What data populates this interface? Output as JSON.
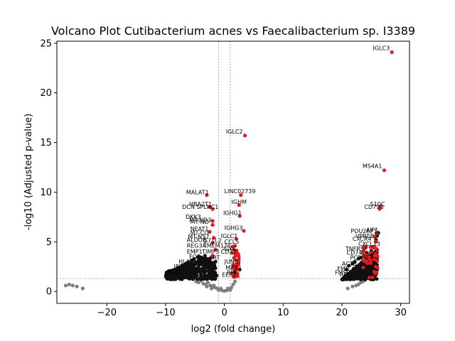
{
  "chart_data": {
    "type": "scatter",
    "title": "Volcano Plot Cutibacterium acnes vs Faecalibacterium sp. I3389",
    "xlabel": "log2 (fold change)",
    "ylabel": "-log10 (Adjusted p-value)",
    "xlim": [
      -28.5,
      31.5
    ],
    "ylim": [
      -1.2,
      25.2
    ],
    "x_ticks": [
      -20,
      -10,
      0,
      10,
      20,
      30
    ],
    "x_tick_labels": [
      "−20",
      "−10",
      "0",
      "10",
      "20",
      "30"
    ],
    "y_ticks": [
      0,
      5,
      10,
      15,
      20,
      25
    ],
    "y_tick_labels": [
      "0",
      "5",
      "10",
      "15",
      "20",
      "25"
    ],
    "thresholds": {
      "log2fc": [
        -1,
        1
      ],
      "neg_log10_padj": 1.3
    },
    "colors": {
      "significant": "#e8191c",
      "not_significant": "#808080",
      "threshold_line": "#808080"
    },
    "grid": false,
    "series": [
      {
        "group": "not_significant",
        "points": [
          [
            -27,
            0.6
          ],
          [
            -26.4,
            0.7
          ],
          [
            -25.8,
            0.6
          ],
          [
            -25.1,
            0.5
          ],
          [
            -24.1,
            0.3
          ],
          [
            -4.8,
            1.0
          ],
          [
            -4.4,
            0.9
          ],
          [
            -4.0,
            1.1
          ],
          [
            -3.6,
            0.8
          ],
          [
            -3.2,
            0.7
          ],
          [
            -2.8,
            0.9
          ],
          [
            -2.4,
            0.6
          ],
          [
            -2.0,
            0.5
          ],
          [
            -1.6,
            0.4
          ],
          [
            -1.2,
            0.3
          ],
          [
            -0.8,
            0.2
          ],
          [
            -0.4,
            0.1
          ],
          [
            0.0,
            0.05
          ],
          [
            0.4,
            0.1
          ],
          [
            0.8,
            0.2
          ],
          [
            1.2,
            0.4
          ],
          [
            1.5,
            0.7
          ],
          [
            1.8,
            1.0
          ],
          [
            -0.6,
            0.3
          ],
          [
            0.6,
            0.3
          ],
          [
            -3.0,
            0.5
          ],
          [
            -1.0,
            0.15
          ],
          [
            1.0,
            0.15
          ],
          [
            -2.2,
            0.3
          ],
          [
            -1.8,
            0.6
          ],
          [
            21.0,
            0.3
          ],
          [
            21.8,
            0.5
          ],
          [
            22.4,
            0.6
          ],
          [
            22.8,
            0.7
          ],
          [
            23.2,
            0.9
          ],
          [
            23.5,
            1.0
          ],
          [
            23.8,
            1.1
          ]
        ]
      },
      {
        "group": "significant_cluster",
        "points": [
          [
            -9.5,
            1.5
          ],
          [
            -9.0,
            1.6
          ],
          [
            -8.5,
            1.7
          ],
          [
            -8.0,
            1.6
          ],
          [
            -7.5,
            1.8
          ],
          [
            -7.0,
            2.0
          ],
          [
            -6.5,
            2.2
          ],
          [
            -6.0,
            2.4
          ],
          [
            -5.5,
            2.5
          ],
          [
            -5.0,
            2.7
          ],
          [
            -4.5,
            2.8
          ],
          [
            -4.0,
            3.0
          ],
          [
            -3.5,
            2.9
          ],
          [
            -3.0,
            3.1
          ],
          [
            -2.5,
            3.3
          ],
          [
            -2.0,
            3.5
          ],
          [
            -1.5,
            3.0
          ],
          [
            -6.8,
            1.5
          ],
          [
            -5.8,
            1.9
          ],
          [
            -4.8,
            2.1
          ],
          [
            -3.8,
            2.3
          ],
          [
            -2.8,
            2.4
          ],
          [
            -1.8,
            2.6
          ],
          [
            -7.8,
            2.4
          ],
          [
            -6.3,
            2.9
          ],
          [
            -5.3,
            3.2
          ],
          [
            -4.3,
            3.5
          ],
          [
            -3.3,
            3.6
          ],
          [
            -2.3,
            1.8
          ],
          [
            -1.3,
            1.6
          ],
          [
            1.5,
            1.6
          ],
          [
            1.8,
            2.0
          ],
          [
            2.0,
            2.4
          ],
          [
            2.2,
            1.8
          ],
          [
            2.4,
            2.8
          ],
          [
            1.6,
            2.6
          ],
          [
            2.6,
            2.2
          ],
          [
            20.5,
            1.5
          ],
          [
            21.0,
            1.8
          ],
          [
            21.5,
            2.0
          ],
          [
            22.0,
            2.3
          ],
          [
            22.5,
            2.5
          ],
          [
            23.0,
            2.7
          ],
          [
            23.5,
            3.0
          ],
          [
            24.0,
            3.3
          ],
          [
            24.5,
            3.6
          ],
          [
            21.2,
            2.6
          ],
          [
            22.2,
            3.0
          ],
          [
            23.2,
            3.4
          ],
          [
            24.2,
            3.9
          ],
          [
            25.0,
            4.1
          ],
          [
            20.8,
            2.2
          ],
          [
            21.8,
            2.8
          ],
          [
            22.8,
            3.3
          ],
          [
            23.8,
            3.6
          ],
          [
            24.8,
            3.0
          ],
          [
            25.3,
            4.5
          ],
          [
            25.8,
            5.2
          ],
          [
            26.0,
            5.6
          ],
          [
            26.2,
            5.9
          ],
          [
            24.6,
            2.2
          ],
          [
            25.6,
            2.6
          ]
        ]
      },
      {
        "group": "significant_labeled",
        "points": [
          {
            "x": 28.5,
            "y": 24.1,
            "label": "IGLC3"
          },
          {
            "x": 3.5,
            "y": 15.7,
            "label": "IGLC2"
          },
          {
            "x": 27.2,
            "y": 12.2,
            "label": "MS4A1"
          },
          {
            "x": -3.0,
            "y": 9.7,
            "label": "MALAT1"
          },
          {
            "x": 2.8,
            "y": 9.7,
            "label": "LINC02739"
          },
          {
            "x": 2.5,
            "y": 8.7,
            "label": "IGHM"
          },
          {
            "x": -2.5,
            "y": 8.5,
            "label": "HBA2"
          },
          {
            "x": -2.0,
            "y": 8.3,
            "label": "DCN"
          },
          {
            "x": 26.5,
            "y": 8.5,
            "label": "S10C"
          },
          {
            "x": 26.4,
            "y": 8.3,
            "label": "CD79B"
          },
          {
            "x": 2.6,
            "y": 7.6,
            "label": "IGHG1"
          },
          {
            "x": -2.0,
            "y": 7.1,
            "label": "DKK3"
          },
          {
            "x": -2.0,
            "y": 6.7,
            "label": "MT-ND"
          },
          {
            "x": 3.3,
            "y": 6.1,
            "label": "IGHG3"
          },
          {
            "x": -2.5,
            "y": 6.0,
            "label": "NEAT1"
          },
          {
            "x": 25.9,
            "y": 5.8,
            "label": "AIF1"
          },
          {
            "x": 25.6,
            "y": 5.5,
            "label": "POU2AF1"
          },
          {
            "x": -1.8,
            "y": 5.4,
            "label": "MT-CO"
          },
          {
            "x": 2.0,
            "y": 5.3,
            "label": "IGLC1"
          },
          {
            "x": 25.8,
            "y": 5.0,
            "label": "CXCR4"
          },
          {
            "x": -2.0,
            "y": 4.9,
            "label": "ALDOB"
          },
          {
            "x": 1.8,
            "y": 4.6,
            "label": "CCL5"
          },
          {
            "x": 25.4,
            "y": 4.4,
            "label": "CXCL13"
          },
          {
            "x": -1.5,
            "y": 4.2,
            "label": "REG3A"
          },
          {
            "x": 2.0,
            "y": 4.0,
            "label": "IGKC"
          },
          {
            "x": 24.9,
            "y": 3.9,
            "label": "TNFRSF"
          },
          {
            "x": -2.0,
            "y": 3.6,
            "label": "TIMP3"
          }
        ]
      }
    ],
    "annotation_labels": [
      {
        "x": -6.5,
        "y": 9.8,
        "text": "MALAT1"
      },
      {
        "x": 0.0,
        "y": 9.9,
        "text": "LINC02739"
      },
      {
        "x": -6.0,
        "y": 8.6,
        "text": "HBA2T1"
      },
      {
        "x": -7.2,
        "y": 8.3,
        "text": "DCN SPLNC1"
      },
      {
        "x": 1.2,
        "y": 8.8,
        "text": "IGHM"
      },
      {
        "x": 24.8,
        "y": 8.6,
        "text": "S10C"
      },
      {
        "x": 23.8,
        "y": 8.3,
        "text": "CD79B"
      },
      {
        "x": -0.2,
        "y": 7.7,
        "text": "IGHG1"
      },
      {
        "x": -6.6,
        "y": 7.3,
        "text": "DKK3"
      },
      {
        "x": -6.0,
        "y": 7.0,
        "text": "MT-ND3"
      },
      {
        "x": -5.8,
        "y": 6.8,
        "text": "MT-ND"
      },
      {
        "x": 0.0,
        "y": 6.2,
        "text": "IGHG3"
      },
      {
        "x": -5.8,
        "y": 6.1,
        "text": "NEAT1"
      },
      {
        "x": 24.1,
        "y": 6.0,
        "text": "AIF1"
      },
      {
        "x": 21.5,
        "y": 5.9,
        "text": "POU2AF1"
      },
      {
        "x": -5.8,
        "y": 5.7,
        "text": "MT-CO"
      },
      {
        "x": -0.6,
        "y": 5.4,
        "text": "IGLC1"
      },
      {
        "x": -6.2,
        "y": 5.3,
        "text": "MT-N57"
      },
      {
        "x": 22.3,
        "y": 5.4,
        "text": "VPREB3"
      },
      {
        "x": 21.8,
        "y": 5.1,
        "text": "CXCR4"
      },
      {
        "x": -6.4,
        "y": 5.0,
        "text": "ALDOB"
      },
      {
        "x": -3.6,
        "y": 4.9,
        "text": "G71L2"
      },
      {
        "x": 0.0,
        "y": 4.8,
        "text": "CCL5"
      },
      {
        "x": 22.8,
        "y": 4.6,
        "text": "CXCL13"
      },
      {
        "x": -6.4,
        "y": 4.4,
        "text": "REG3A"
      },
      {
        "x": -3.6,
        "y": 4.4,
        "text": "TMEM176"
      },
      {
        "x": -0.2,
        "y": 4.1,
        "text": "IGKC"
      },
      {
        "x": 20.6,
        "y": 4.1,
        "text": "TNFRSF"
      },
      {
        "x": -6.4,
        "y": 3.8,
        "text": "EMP1"
      },
      {
        "x": -3.8,
        "y": 3.8,
        "text": "TIMP3"
      },
      {
        "x": -0.6,
        "y": 3.8,
        "text": "CD37"
      },
      {
        "x": 20.8,
        "y": 3.7,
        "text": "CD74"
      },
      {
        "x": -6.0,
        "y": 3.3,
        "text": "FOS"
      },
      {
        "x": -2.6,
        "y": 3.2,
        "text": "KRT"
      },
      {
        "x": 21.4,
        "y": 3.2,
        "text": "PCBP1"
      },
      {
        "x": -7.8,
        "y": 2.8,
        "text": "HLA"
      },
      {
        "x": 0.0,
        "y": 2.8,
        "text": "JUNB"
      },
      {
        "x": 20.0,
        "y": 2.6,
        "text": "ACTB"
      },
      {
        "x": -8.6,
        "y": 2.3,
        "text": "IFI"
      },
      {
        "x": 0.2,
        "y": 2.2,
        "text": "MZB1"
      },
      {
        "x": 19.2,
        "y": 2.1,
        "text": "FMR"
      },
      {
        "x": -9.6,
        "y": 1.8,
        "text": "B2M"
      },
      {
        "x": 0.4,
        "y": 1.7,
        "text": "RPL"
      },
      {
        "x": 18.8,
        "y": 1.7,
        "text": "FMS"
      },
      {
        "x": -10.2,
        "y": 1.6,
        "text": "BS"
      },
      {
        "x": -0.4,
        "y": 1.5,
        "text": "EEF1"
      },
      {
        "x": 19.6,
        "y": 1.5,
        "text": "RPS"
      }
    ]
  }
}
